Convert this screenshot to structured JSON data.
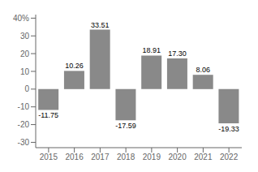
{
  "chart_data": {
    "type": "bar",
    "categories": [
      "2015",
      "2016",
      "2017",
      "2018",
      "2019",
      "2020",
      "2021",
      "2022"
    ],
    "values": [
      -11.75,
      10.26,
      33.51,
      -17.59,
      18.91,
      17.3,
      8.06,
      -19.33
    ],
    "value_labels": [
      "-11.75",
      "10.26",
      "33.51",
      "-17.59",
      "18.91",
      "17.30",
      "8.06",
      "-19.33"
    ],
    "color": "#898989",
    "ylim": [
      -33,
      42
    ],
    "yticks": [
      -30,
      -20,
      -10,
      0,
      10,
      20,
      30,
      {
        "value": 40,
        "label": "40%"
      }
    ],
    "grid": false,
    "data_labels": true
  }
}
